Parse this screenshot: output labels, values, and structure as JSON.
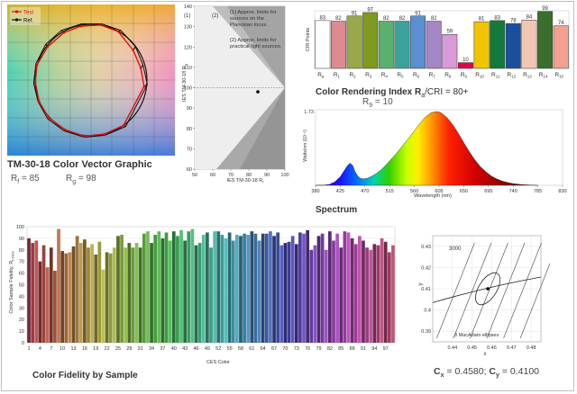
{
  "tm30": {
    "title": "TM-30-18 Color Vector Graphic",
    "rf_label": "R",
    "rf_sub": "f",
    "rf_value": "= 85",
    "rg_label": "R",
    "rg_sub": "g",
    "rg_value": "= 98",
    "legend": {
      "test": "Test",
      "ref": "Ref."
    },
    "colors": {
      "test": "#e01010",
      "ref": "#111111"
    },
    "test_points": [
      [
        98,
        -12
      ],
      [
        92,
        22
      ],
      [
        78,
        55
      ],
      [
        50,
        90
      ],
      [
        18,
        102
      ],
      [
        -18,
        100
      ],
      [
        -50,
        88
      ],
      [
        -80,
        62
      ],
      [
        -100,
        28
      ],
      [
        -103,
        -4
      ],
      [
        -96,
        -40
      ],
      [
        -78,
        -70
      ],
      [
        -48,
        -92
      ],
      [
        -12,
        -104
      ],
      [
        25,
        -100
      ],
      [
        60,
        -84
      ]
    ],
    "ref_points": [
      [
        104,
        -8
      ],
      [
        96,
        28
      ],
      [
        82,
        62
      ],
      [
        55,
        92
      ],
      [
        20,
        104
      ],
      [
        -18,
        104
      ],
      [
        -55,
        92
      ],
      [
        -84,
        66
      ],
      [
        -102,
        30
      ],
      [
        -106,
        -6
      ],
      [
        -98,
        -40
      ],
      [
        -80,
        -72
      ],
      [
        -50,
        -94
      ],
      [
        -12,
        -106
      ],
      [
        26,
        -102
      ],
      [
        64,
        -86
      ]
    ]
  },
  "rfrg": {
    "chart_data": {
      "type": "scatter",
      "xlabel_main": "IES TM-30-18 R",
      "xlabel_sub": "f",
      "ylabel_main": "IES TM-30-18 R",
      "ylabel_sub": "g",
      "xlim": [
        50,
        100
      ],
      "ylim": [
        60,
        140
      ],
      "xticks": [
        50,
        60,
        70,
        80,
        90,
        100
      ],
      "yticks": [
        60,
        70,
        80,
        90,
        100,
        110,
        120,
        130,
        140
      ],
      "point": [
        85,
        98
      ]
    },
    "tag1": "(1)",
    "tag2": "(2)",
    "note1": "(1) Approx. limits for sources on the Planckian locus.",
    "note2": "(2) Approx. limits for practical light sources."
  },
  "cri": {
    "title_main": "Color Rendering Index R",
    "title_sub": "a",
    "title_rest": "/CRI = 80+",
    "r9_main": "R",
    "r9_sub": "9",
    "r9_rest": " = 10",
    "chart_data": {
      "type": "bar",
      "ylabel": "CRI Points",
      "categories": [
        "a",
        "1",
        "2",
        "3",
        "4",
        "5",
        "6",
        "7",
        "8",
        "9",
        "10",
        "11",
        "12",
        "13",
        "14",
        "15"
      ],
      "cat_prefix": "R",
      "values": [
        83,
        82,
        91,
        97,
        82,
        82,
        91,
        82,
        59,
        10,
        81,
        83,
        78,
        84,
        99,
        74
      ],
      "ylim": [
        0,
        100
      ],
      "colors": [
        "#ffffff",
        "#de8a90",
        "#98a84a",
        "#7e9a20",
        "#5bb070",
        "#39a39b",
        "#5b8fd0",
        "#a586c6",
        "#d89ad8",
        "#e6004a",
        "#f2c400",
        "#127a3c",
        "#1a4fa0",
        "#f1c7b4",
        "#3b6e2c",
        "#f2a090"
      ]
    }
  },
  "spectrum": {
    "title": "Spectrum",
    "chart_data": {
      "type": "area",
      "xlabel": "Wavelength (nm)",
      "ylabel": "Watts/nm (10⁻²)",
      "xlim": [
        380,
        830
      ],
      "xticks": [
        380,
        425,
        470,
        515,
        560,
        605,
        650,
        695,
        740,
        785,
        830
      ],
      "ymax_label": "1.73",
      "x": [
        380,
        395,
        405,
        415,
        425,
        432,
        438,
        443,
        448,
        452,
        457,
        462,
        468,
        475,
        482,
        490,
        500,
        510,
        520,
        530,
        540,
        550,
        560,
        570,
        580,
        590,
        600,
        605,
        610,
        620,
        630,
        640,
        650,
        660,
        670,
        680,
        690,
        700,
        710,
        720,
        730,
        740,
        750,
        760,
        770,
        785
      ],
      "y": [
        0,
        0.004,
        0.02,
        0.08,
        0.2,
        0.34,
        0.46,
        0.52,
        0.46,
        0.32,
        0.22,
        0.16,
        0.15,
        0.17,
        0.21,
        0.27,
        0.37,
        0.5,
        0.64,
        0.79,
        0.95,
        1.11,
        1.28,
        1.45,
        1.6,
        1.7,
        1.73,
        1.72,
        1.69,
        1.58,
        1.42,
        1.22,
        1.0,
        0.79,
        0.6,
        0.44,
        0.32,
        0.22,
        0.15,
        0.1,
        0.065,
        0.04,
        0.025,
        0.014,
        0.007,
        0
      ]
    }
  },
  "fidelity": {
    "title": "Color Fidelity by Sample",
    "chart_data": {
      "type": "bar",
      "ylabel_main": "Color Sample Fidelity, R",
      "ylabel_sub": "f,CES",
      "xlabel": "CES Color",
      "ylim": [
        0,
        100
      ],
      "yticks": [
        0,
        10,
        20,
        30,
        40,
        50,
        60,
        70,
        80,
        90,
        100
      ],
      "xticks": [
        1,
        4,
        7,
        10,
        13,
        16,
        19,
        22,
        25,
        28,
        31,
        34,
        37,
        40,
        43,
        46,
        49,
        52,
        55,
        58,
        61,
        64,
        67,
        70,
        73,
        76,
        79,
        82,
        85,
        88,
        91,
        94,
        97
      ],
      "values": [
        90,
        86,
        88,
        70,
        84,
        65,
        82,
        62,
        98,
        79,
        77,
        78,
        83,
        92,
        86,
        89,
        82,
        85,
        76,
        87,
        63,
        78,
        77,
        82,
        92,
        93,
        82,
        86,
        82,
        86,
        82,
        94,
        96,
        86,
        93,
        96,
        90,
        95,
        88,
        96,
        92,
        97,
        88,
        96,
        98,
        84,
        86,
        93,
        95,
        82,
        96,
        96,
        93,
        90,
        95,
        88,
        93,
        92,
        94,
        93,
        96,
        94,
        88,
        94,
        94,
        96,
        92,
        95,
        84,
        86,
        87,
        92,
        85,
        95,
        94,
        97,
        80,
        84,
        92,
        94,
        80,
        96,
        88,
        94,
        82,
        96,
        95,
        90,
        85,
        92,
        88,
        82,
        80,
        85,
        84,
        90,
        87,
        78,
        84
      ]
    }
  },
  "cie": {
    "chart_data": {
      "type": "scatter",
      "xlabel": "x",
      "ylabel": "y",
      "xlim": [
        0.43,
        0.485
      ],
      "ylim": [
        0.385,
        0.435
      ],
      "xticks": [
        0.44,
        0.45,
        0.46,
        0.47,
        0.48
      ],
      "yticks": [
        0.39,
        0.4,
        0.41,
        0.42,
        0.43
      ],
      "point": [
        0.458,
        0.41
      ]
    },
    "cct_label": "3000",
    "ellipse_label": "3 MacAdam ellipses",
    "cx_main": "C",
    "cx_sub": "x",
    "cx_value": " = 0.4580; ",
    "cy_main": "C",
    "cy_sub": "y",
    "cy_value": " = 0.4100"
  }
}
